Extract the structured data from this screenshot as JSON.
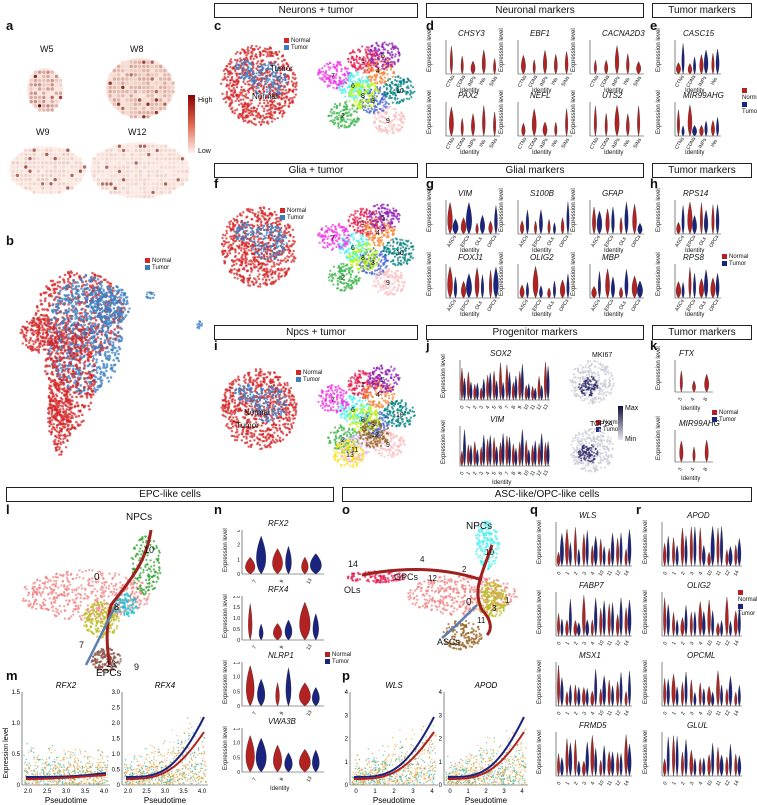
{
  "panel_letters": {
    "a": "a",
    "b": "b",
    "c": "c",
    "d": "d",
    "e": "e",
    "f": "f",
    "g": "g",
    "h": "h",
    "i": "i",
    "j": "j",
    "k": "k",
    "l": "l",
    "m": "m",
    "n": "n",
    "o": "o",
    "p": "p",
    "q": "q",
    "r": "r"
  },
  "headers": {
    "neurons_tumor": "Neurons + tumor",
    "neuronal_markers": "Neuronal markers",
    "tumor_markers_1": "Tumor markers",
    "glia_tumor": "Glia + tumor",
    "glial_markers": "Glial markers",
    "tumor_markers_2": "Tumor markers",
    "npcs_tumor": "Npcs + tumor",
    "progenitor_markers": "Progenitor markers",
    "tumor_markers_3": "Tumor markers",
    "epc_like": "EPC-like cells",
    "asc_opc_like": "ASC-like/OPC-like cells"
  },
  "panel_a": {
    "samples": [
      "W5",
      "W8",
      "W9",
      "W12"
    ],
    "scale_high": "High",
    "scale_low": "Low"
  },
  "legend": {
    "normal": "Normal",
    "tumor": "Tumor",
    "normal_color": "#d62728",
    "tumor_color": "#3a7fc1"
  },
  "colors": {
    "normal_violin": "#b22222",
    "tumor_violin": "#1a237e"
  },
  "axis": {
    "expression_level": "Expression level",
    "identity": "Identity",
    "pseudotime": "Pseudotime"
  },
  "panel_c": {
    "labels": [
      "Normal",
      "Tumor",
      "Normal"
    ],
    "clusters": [
      "1",
      "2",
      "3",
      "4",
      "5",
      "6",
      "7",
      "8",
      "9",
      "10"
    ]
  },
  "panel_d": {
    "genes": [
      "CHSY3",
      "EBF1",
      "CACNA2D3",
      "PAX2",
      "NEFL",
      "UTS2"
    ],
    "cats": [
      "CTNs",
      "CDNs",
      "INPs",
      "INs",
      "SINs"
    ]
  },
  "panel_e": {
    "genes": [
      "CASC15",
      "MIR99AHG"
    ]
  },
  "panel_f": {
    "clusters": [
      "1",
      "2",
      "3",
      "4",
      "5",
      "6",
      "7",
      "8",
      "9",
      "10"
    ]
  },
  "panel_g": {
    "genes": [
      "VIM",
      "S100B",
      "GFAP",
      "FOXJ1",
      "OLIG2",
      "MBP"
    ],
    "cats": [
      "ASCs",
      "EPCs",
      "OLs",
      "OPCs"
    ]
  },
  "panel_h": {
    "genes": [
      "RPS14",
      "RPS8"
    ]
  },
  "panel_i": {
    "labels": [
      "Normal",
      "Tumor"
    ],
    "clusters": [
      "1",
      "2",
      "3",
      "4",
      "5",
      "6",
      "7",
      "8",
      "9",
      "10",
      "11",
      "12",
      "13"
    ]
  },
  "panel_j": {
    "genes": [
      "SOX2",
      "VIM"
    ],
    "feature_genes": [
      "MKI67",
      "TOP2A"
    ],
    "scale_max": "Max",
    "scale_min": "Min",
    "cats": [
      "0",
      "1",
      "2",
      "3",
      "4",
      "5",
      "6",
      "7",
      "8",
      "9",
      "10",
      "11",
      "12",
      "13"
    ]
  },
  "panel_k": {
    "genes": [
      "FTX",
      "MIR99AHG"
    ],
    "cats": [
      "3",
      "4",
      "8"
    ]
  },
  "panel_l": {
    "labels": {
      "npcs": "NPCs",
      "epcs": "EPCs"
    },
    "clusters": [
      "10",
      "0",
      "8",
      "7",
      "13",
      "9"
    ]
  },
  "panel_m": {
    "genes": [
      "RFX2",
      "RFX4"
    ],
    "yticks_left": [
      "1.5",
      "1.0",
      "0.5",
      "0"
    ],
    "yticks_right": [
      "3.0",
      "2.5",
      "2.0",
      "1.5",
      "1.0",
      "0.5",
      "0"
    ],
    "xticks": [
      "2.0",
      "2.5",
      "3.0",
      "3.5",
      "4.0"
    ]
  },
  "panel_n": {
    "genes": [
      "RFX2",
      "RFX4",
      "NLRP1",
      "VWA3B"
    ],
    "cats": [
      "7",
      "9",
      "13"
    ],
    "yticks": {
      "RFX2": [
        "3",
        "2",
        "1",
        "0"
      ],
      "RFX4": [
        "2.0",
        "1.5",
        "1.0",
        "0.5",
        "0"
      ],
      "NLRP1": [
        "1.5",
        "1.0",
        "0.5",
        "0"
      ],
      "VWA3B": [
        "1.5",
        "1.0",
        "0.5",
        "0"
      ]
    }
  },
  "panel_o": {
    "labels": {
      "npcs": "NPCs",
      "opcs": "OPCs",
      "ols": "OLs",
      "ascs": "ASCs"
    },
    "clusters": [
      "14",
      "4",
      "12",
      "2",
      "10",
      "0",
      "3",
      "1",
      "11"
    ]
  },
  "panel_p": {
    "genes": [
      "WLS",
      "APOD"
    ],
    "yticks_left": [
      "4",
      "3",
      "2",
      "1",
      "0"
    ],
    "yticks_right": [
      "4",
      "3",
      "2",
      "1",
      "0"
    ],
    "xticks": [
      "0",
      "1",
      "2",
      "3",
      "4"
    ]
  },
  "panel_q": {
    "genes": [
      "WLS",
      "FABP7",
      "MSX1",
      "FRMD5"
    ],
    "cats": [
      "0",
      "1",
      "2",
      "3",
      "4",
      "10",
      "11",
      "12",
      "14"
    ]
  },
  "panel_r": {
    "genes": [
      "APOD",
      "OLIG2",
      "OPCML",
      "GLUL"
    ],
    "cats": [
      "0",
      "1",
      "2",
      "3",
      "4",
      "10",
      "11",
      "12",
      "14"
    ]
  }
}
